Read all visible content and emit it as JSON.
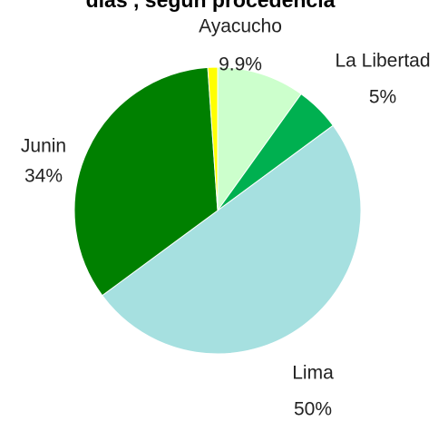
{
  "chart_data": {
    "type": "pie",
    "title": "días , según procedencia",
    "categories": [
      "Ayacucho",
      "La Libertad",
      "Lima",
      "Junin",
      null
    ],
    "values": [
      9.9,
      5,
      50,
      34,
      1.1
    ],
    "value_labels": [
      "9.9%",
      "5%",
      "50%",
      "34%",
      null
    ],
    "colors": [
      "#ccffcc",
      "#00b050",
      "#a6e0e0",
      "#008000",
      "#ffff00"
    ]
  }
}
